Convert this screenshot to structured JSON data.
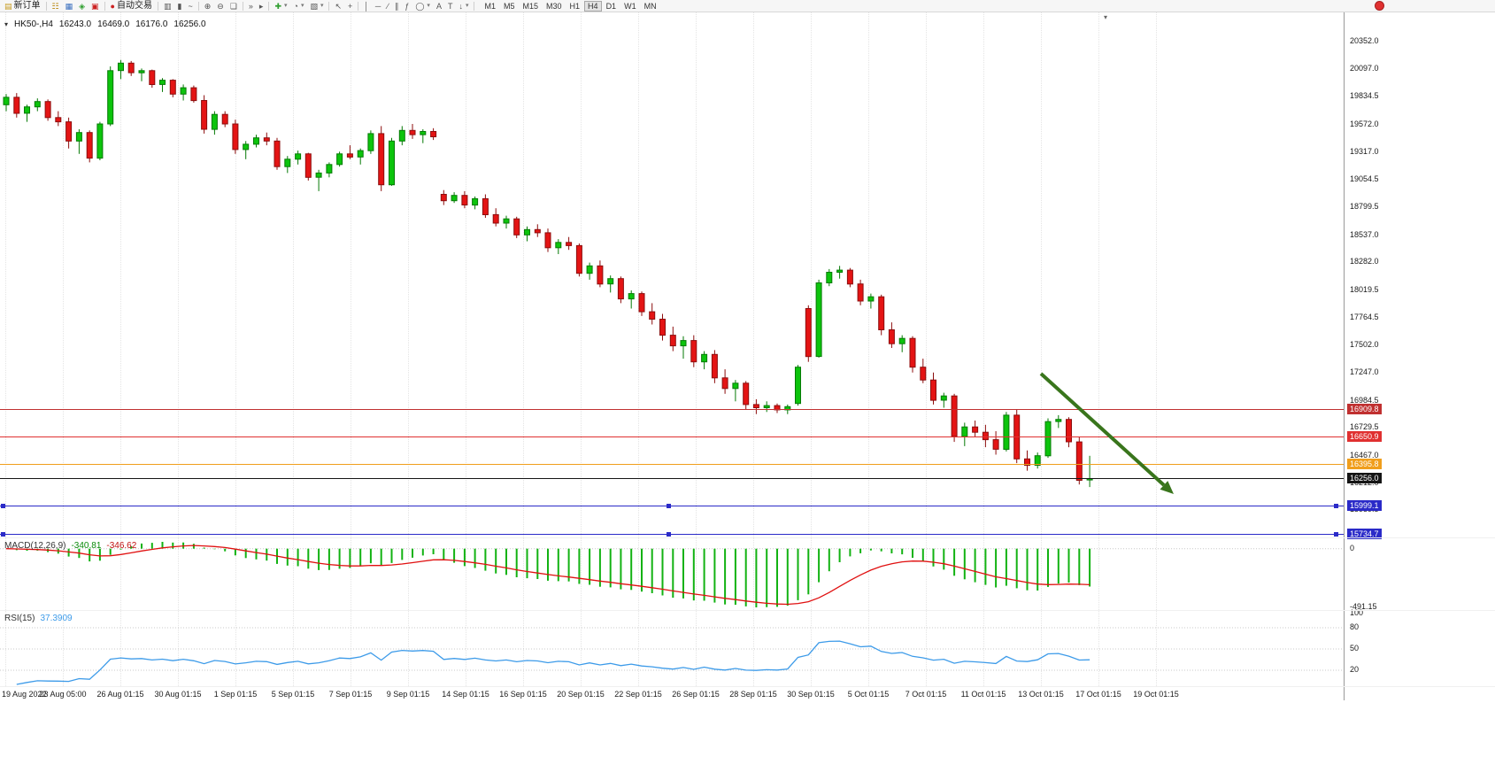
{
  "toolbar": {
    "new_order_label": "新订单",
    "auto_trading_label": "自动交易",
    "timeframes": [
      "M1",
      "M5",
      "M15",
      "M30",
      "H1",
      "H4",
      "D1",
      "W1",
      "MN"
    ],
    "active_timeframe": "H4"
  },
  "icons": {
    "one_click": "▾",
    "new_order": "▤",
    "market_watch": "☷",
    "data_window": "▦",
    "navigator": "◈",
    "terminal": "▣",
    "auto_trading_dot": "●",
    "bars_type": "▥",
    "candles_type": "▮",
    "line_type": "~",
    "zoom_in": "⊕",
    "zoom_out": "⊖",
    "tile_windows": "❏",
    "auto_scroll": "»",
    "chart_shift": "▸",
    "indicators": "✚",
    "periods": "◔",
    "templates": "▧",
    "cursor": "↖",
    "crosshair": "+",
    "vline": "│",
    "hline": "─",
    "trendline": "∕",
    "channel": "∥",
    "fibo": "ƒ",
    "shapes": "◯",
    "text": "A",
    "label": "T",
    "arrows": "↓",
    "dropdown": "▾",
    "shift_marker": "▾"
  },
  "chart_header": {
    "symbol_period": "HK50-,H4",
    "open": "16243.0",
    "high": "16469.0",
    "low": "16176.0",
    "close": "16256.0"
  },
  "indicator_panels": {
    "macd": {
      "label": "MACD(12,26,9)",
      "main": "-340.81",
      "signal": "-346.62",
      "zero_label": "0",
      "min_label": "-491.15"
    },
    "rsi": {
      "label": "RSI(15)",
      "value": "37.3909",
      "levels": [
        {
          "v": 100,
          "label": "100"
        },
        {
          "v": 80,
          "label": "80"
        },
        {
          "v": 50,
          "label": "50"
        },
        {
          "v": 20,
          "label": "20"
        }
      ]
    }
  },
  "chart_data": {
    "type": "candlestick",
    "symbol": "HK50-",
    "timeframe": "H4",
    "scale": {
      "top": 20626,
      "bottom": 15704
    },
    "y_ticks": [
      "20352.0",
      "20097.0",
      "19834.5",
      "19572.0",
      "19317.0",
      "19054.5",
      "18799.5",
      "18537.0",
      "18282.0",
      "18019.5",
      "17764.5",
      "17502.0",
      "17247.0",
      "16984.5",
      "16729.5",
      "16467.0",
      "16212.0",
      "15959.5"
    ],
    "x_ticks": [
      "19 Aug 2022",
      "23 Aug 05:00",
      "26 Aug 01:15",
      "30 Aug 01:15",
      "1 Sep 01:15",
      "5 Sep 01:15",
      "7 Sep 01:15",
      "9 Sep 01:15",
      "14 Sep 01:15",
      "16 Sep 01:15",
      "20 Sep 01:15",
      "22 Sep 01:15",
      "26 Sep 01:15",
      "28 Sep 01:15",
      "30 Sep 01:15",
      "5 Oct 01:15",
      "7 Oct 01:15",
      "11 Oct 01:15",
      "13 Oct 01:15",
      "17 Oct 01:15",
      "19 Oct 01:15"
    ],
    "hlines": [
      {
        "label": "16909.8",
        "value": 16909.8,
        "color": "#c03030"
      },
      {
        "label": "16650.9",
        "value": 16650.9,
        "color": "#e03030"
      },
      {
        "label": "16395.8",
        "value": 16395.8,
        "color": "#f09e1c"
      },
      {
        "label": "16256.0",
        "value": 16256.0,
        "color": "#151515"
      },
      {
        "label": "15999.1",
        "value": 15999.1,
        "color": "#2a2ac8",
        "handles": true
      },
      {
        "label": "15734.7",
        "value": 15734.7,
        "color": "#2a2ac8",
        "handles": true
      }
    ],
    "indicators": [
      {
        "name": "MACD",
        "params": [
          12,
          26,
          9
        ]
      },
      {
        "name": "RSI",
        "params": [
          15
        ]
      }
    ],
    "colors": {
      "bull": "#0cc40c",
      "bull_stroke": "#067a06",
      "bear": "#e41414",
      "bear_stroke": "#8c0d0d",
      "macd_histogram": "#12b212",
      "macd_signal": "#e01010",
      "rsi_line": "#3d9be9",
      "grid": "#e4e4e4",
      "level_dotted": "#c8c8c8"
    },
    "ohlc": [
      [
        19760,
        19860,
        19700,
        19830
      ],
      [
        19830,
        19870,
        19640,
        19680
      ],
      [
        19680,
        19760,
        19600,
        19740
      ],
      [
        19740,
        19820,
        19700,
        19790
      ],
      [
        19790,
        19810,
        19610,
        19640
      ],
      [
        19640,
        19700,
        19560,
        19600
      ],
      [
        19600,
        19640,
        19350,
        19420
      ],
      [
        19420,
        19530,
        19300,
        19500
      ],
      [
        19500,
        19520,
        19220,
        19260
      ],
      [
        19260,
        19600,
        19240,
        19580
      ],
      [
        19580,
        20120,
        19560,
        20080
      ],
      [
        20080,
        20180,
        20000,
        20150
      ],
      [
        20150,
        20170,
        20030,
        20060
      ],
      [
        20060,
        20100,
        19980,
        20080
      ],
      [
        20080,
        20090,
        19920,
        19950
      ],
      [
        19950,
        20010,
        19880,
        19990
      ],
      [
        19990,
        20000,
        19830,
        19860
      ],
      [
        19860,
        19950,
        19800,
        19920
      ],
      [
        19920,
        19940,
        19780,
        19800
      ],
      [
        19800,
        19850,
        19490,
        19530
      ],
      [
        19530,
        19700,
        19480,
        19670
      ],
      [
        19670,
        19700,
        19550,
        19580
      ],
      [
        19580,
        19620,
        19300,
        19340
      ],
      [
        19340,
        19420,
        19250,
        19390
      ],
      [
        19390,
        19480,
        19360,
        19450
      ],
      [
        19450,
        19500,
        19380,
        19420
      ],
      [
        19420,
        19450,
        19150,
        19180
      ],
      [
        19180,
        19280,
        19120,
        19250
      ],
      [
        19250,
        19330,
        19200,
        19300
      ],
      [
        19300,
        19310,
        19050,
        19080
      ],
      [
        19080,
        19150,
        18950,
        19120
      ],
      [
        19120,
        19220,
        19080,
        19200
      ],
      [
        19200,
        19320,
        19180,
        19300
      ],
      [
        19300,
        19380,
        19250,
        19270
      ],
      [
        19270,
        19350,
        19200,
        19330
      ],
      [
        19330,
        19520,
        19300,
        19490
      ],
      [
        19490,
        19560,
        18950,
        19010
      ],
      [
        19010,
        19450,
        19000,
        19420
      ],
      [
        19420,
        19560,
        19380,
        19520
      ],
      [
        19520,
        19580,
        19440,
        19480
      ],
      [
        19480,
        19530,
        19400,
        19510
      ],
      [
        19510,
        19540,
        19430,
        19460
      ],
      [
        18920,
        18960,
        18820,
        18860
      ],
      [
        18860,
        18940,
        18840,
        18910
      ],
      [
        18910,
        18950,
        18790,
        18820
      ],
      [
        18820,
        18900,
        18780,
        18880
      ],
      [
        18880,
        18920,
        18700,
        18730
      ],
      [
        18730,
        18790,
        18620,
        18650
      ],
      [
        18650,
        18720,
        18600,
        18690
      ],
      [
        18690,
        18710,
        18510,
        18540
      ],
      [
        18540,
        18620,
        18480,
        18590
      ],
      [
        18590,
        18640,
        18520,
        18560
      ],
      [
        18560,
        18600,
        18380,
        18420
      ],
      [
        18420,
        18500,
        18360,
        18470
      ],
      [
        18470,
        18520,
        18400,
        18440
      ],
      [
        18440,
        18460,
        18150,
        18180
      ],
      [
        18180,
        18280,
        18120,
        18250
      ],
      [
        18250,
        18300,
        18050,
        18080
      ],
      [
        18080,
        18160,
        18000,
        18130
      ],
      [
        18130,
        18150,
        17900,
        17940
      ],
      [
        17940,
        18020,
        17850,
        17990
      ],
      [
        17990,
        18010,
        17780,
        17820
      ],
      [
        17820,
        17900,
        17700,
        17750
      ],
      [
        17750,
        17800,
        17550,
        17600
      ],
      [
        17600,
        17680,
        17450,
        17500
      ],
      [
        17500,
        17590,
        17380,
        17550
      ],
      [
        17550,
        17600,
        17300,
        17350
      ],
      [
        17350,
        17450,
        17280,
        17420
      ],
      [
        17420,
        17460,
        17150,
        17200
      ],
      [
        17200,
        17280,
        17050,
        17100
      ],
      [
        17100,
        17180,
        16980,
        17150
      ],
      [
        17150,
        17170,
        16900,
        16950
      ],
      [
        16950,
        17000,
        16860,
        16920
      ],
      [
        16920,
        16980,
        16880,
        16940
      ],
      [
        16940,
        16960,
        16870,
        16900
      ],
      [
        16900,
        16950,
        16860,
        16930
      ],
      [
        16960,
        17320,
        16940,
        17300
      ],
      [
        17850,
        17880,
        17350,
        17400
      ],
      [
        17400,
        18120,
        17390,
        18090
      ],
      [
        18090,
        18220,
        18060,
        18190
      ],
      [
        18190,
        18250,
        18130,
        18210
      ],
      [
        18210,
        18230,
        18050,
        18080
      ],
      [
        18080,
        18120,
        17880,
        17920
      ],
      [
        17920,
        17990,
        17850,
        17960
      ],
      [
        17960,
        17980,
        17600,
        17650
      ],
      [
        17650,
        17720,
        17480,
        17520
      ],
      [
        17520,
        17600,
        17440,
        17570
      ],
      [
        17570,
        17590,
        17250,
        17300
      ],
      [
        17300,
        17380,
        17150,
        17180
      ],
      [
        17180,
        17250,
        16950,
        16990
      ],
      [
        16990,
        17060,
        16920,
        17030
      ],
      [
        17030,
        17050,
        16600,
        16650
      ],
      [
        16650,
        16780,
        16560,
        16740
      ],
      [
        16740,
        16800,
        16650,
        16690
      ],
      [
        16690,
        16760,
        16550,
        16620
      ],
      [
        16620,
        16700,
        16480,
        16530
      ],
      [
        16530,
        16880,
        16510,
        16850
      ],
      [
        16850,
        16900,
        16400,
        16440
      ],
      [
        16440,
        16520,
        16330,
        16380
      ],
      [
        16380,
        16500,
        16350,
        16470
      ],
      [
        16470,
        16820,
        16450,
        16790
      ],
      [
        16790,
        16850,
        16730,
        16810
      ],
      [
        16810,
        16830,
        16550,
        16600
      ],
      [
        16600,
        16650,
        16200,
        16240
      ],
      [
        16243,
        16469,
        16176,
        16256
      ]
    ]
  },
  "annotation": {
    "arrow": {
      "from": [
        1176,
        408
      ],
      "to": [
        1326,
        544
      ],
      "color": "#39751c"
    }
  }
}
